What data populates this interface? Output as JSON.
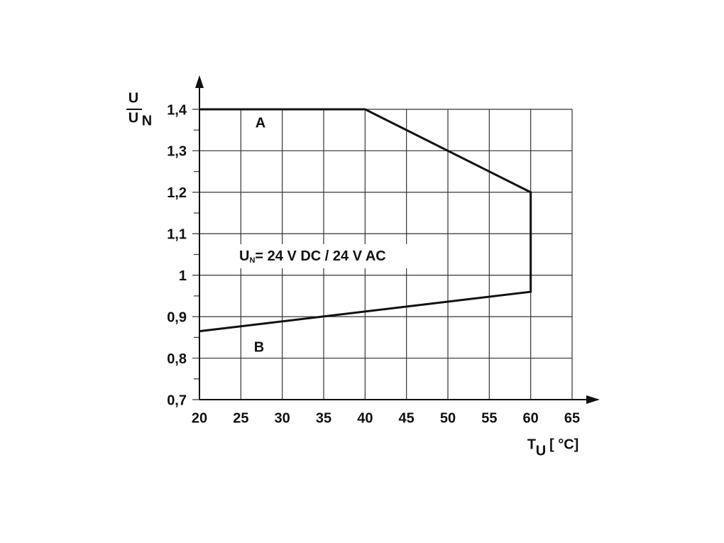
{
  "chart_data": {
    "type": "line",
    "xlim": [
      20,
      65
    ],
    "xticks": [
      20,
      25,
      30,
      35,
      40,
      45,
      50,
      55,
      60,
      65
    ],
    "ylim": [
      0.7,
      1.4
    ],
    "yticks": [
      {
        "value": 0.7,
        "label": "0,7"
      },
      {
        "value": 0.8,
        "label": "0,8"
      },
      {
        "value": 0.9,
        "label": "0,9"
      },
      1,
      {
        "value": 1.1,
        "label": "1,1"
      },
      {
        "value": 1.2,
        "label": "1,2"
      },
      {
        "value": 1.3,
        "label": "1,3"
      },
      {
        "value": 1.4,
        "label": "1,4"
      }
    ],
    "minor_yticks": [
      0.75,
      0.85,
      0.95,
      1.05,
      1.15,
      1.25,
      1.35
    ],
    "grid": true,
    "series": [
      {
        "color": "#111111",
        "x": [
          20,
          40,
          60,
          60,
          20
        ],
        "values": [
          1.4,
          1.4,
          1.2,
          0.96,
          0.865
        ]
      }
    ],
    "annotations": [
      "A",
      "B"
    ],
    "note": {
      "main": "U",
      "sub": "N",
      "rest": "= 24 V DC / 24 V AC"
    },
    "ylabel": {
      "num": "U",
      "den": "U",
      "den_sub": "N"
    },
    "xlabel": {
      "main": "T",
      "sub": "U",
      "unit": "[ °C]"
    }
  }
}
